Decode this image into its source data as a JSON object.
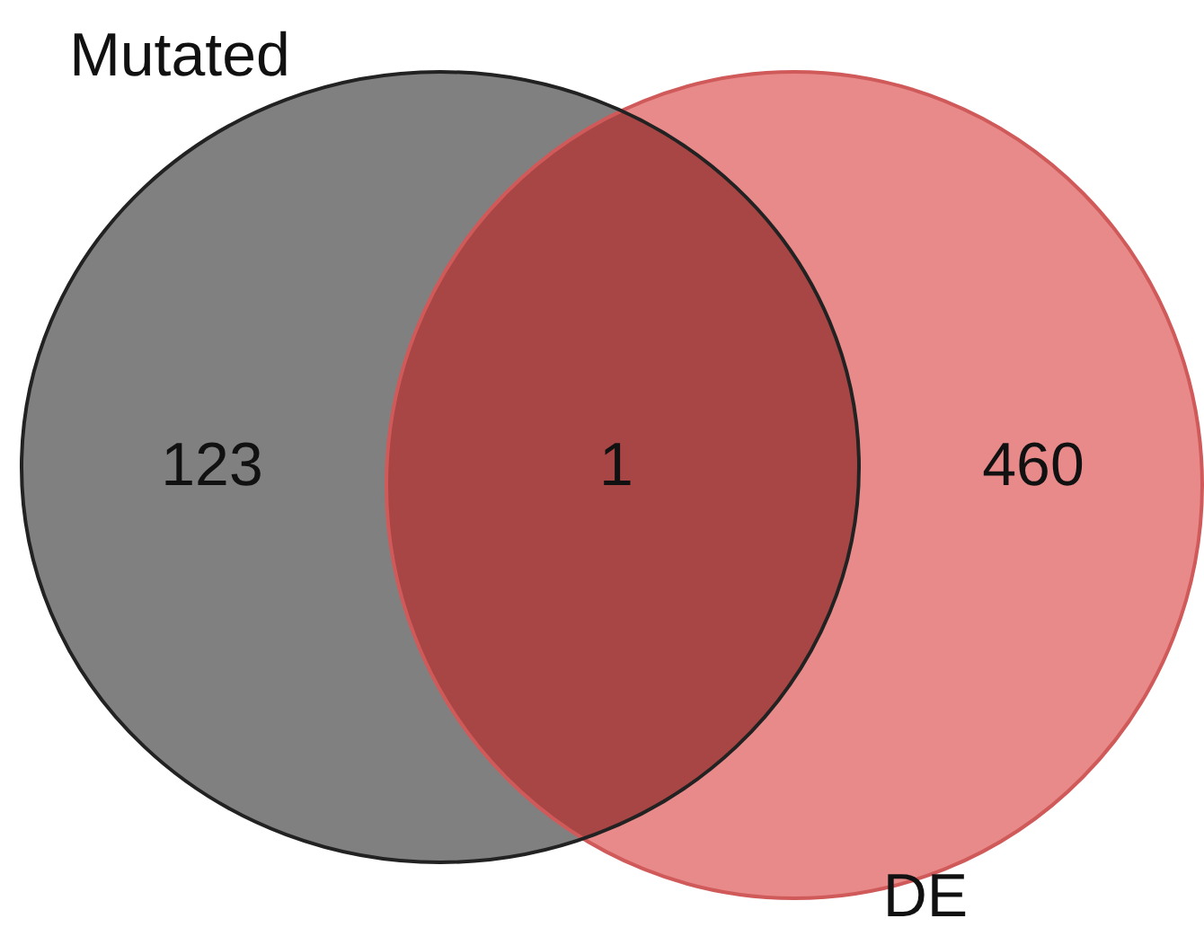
{
  "chart_data": {
    "type": "other",
    "categories": [
      null,
      null,
      null
    ],
    "values": [
      123,
      1,
      460
    ],
    "colors": [
      "#808080",
      "#a84545",
      "#e88a8a"
    ],
    "data_labels": true,
    "annotations": [
      "Mutated",
      "DE"
    ]
  }
}
